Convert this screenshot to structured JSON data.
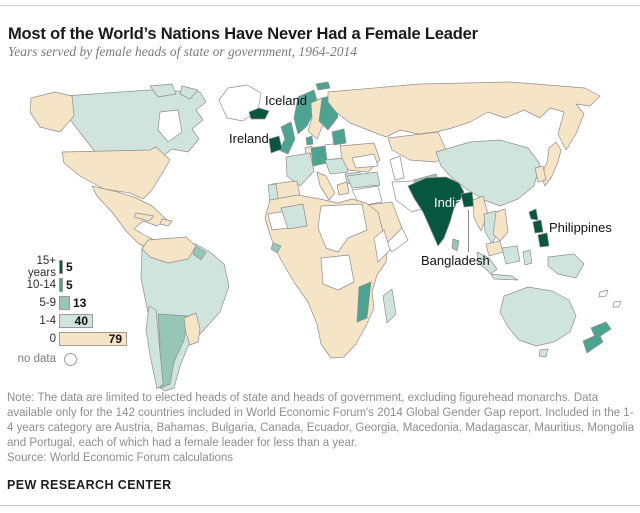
{
  "header": {
    "title": "Most of the World’s Nations Have Never Had a Female Leader",
    "subtitle": "Years served by female heads of state or government, 1964-2014"
  },
  "legend": {
    "items": [
      {
        "label": "15+ years",
        "value": 5,
        "color": "#07563f",
        "value_placement": "outside"
      },
      {
        "label": "10-14",
        "value": 5,
        "color": "#4ba492",
        "value_placement": "outside"
      },
      {
        "label": "5-9",
        "value": 13,
        "color": "#96c7b6",
        "value_placement": "outside"
      },
      {
        "label": "1-4",
        "value": 40,
        "color": "#cfe4dd",
        "value_placement": "inside"
      },
      {
        "label": "0",
        "value": 79,
        "color": "#f5e4c5",
        "value_placement": "inside"
      }
    ],
    "no_data_label": "no data"
  },
  "map": {
    "labels": [
      {
        "text": "Iceland"
      },
      {
        "text": "Ireland"
      },
      {
        "text": "India"
      },
      {
        "text": "Bangladesh"
      },
      {
        "text": "Philippines"
      }
    ]
  },
  "footer": {
    "note": "Note: The data are limited to elected heads of state and heads of government, excluding figurehead monarchs. Data available only for the 142 countries included in World Economic Forum's 2014 Global Gender Gap report. Included in the 1-4 years category are Austria, Bahamas, Bulgaria, Canada, Ecuador, Georgia, Macedonia, Madagascar, Mauritius, Mongolia and Portugal, each of which had a female leader for less than a year.",
    "source": "Source: World Economic Forum calculations",
    "branding": "PEW RESEARCH CENTER"
  },
  "colors": {
    "cat-15plus": "#07563f",
    "cat-10-14": "#4ba492",
    "cat-5-9": "#96c7b6",
    "cat-1-4": "#cfe4dd",
    "cat-0": "#f5e4c5",
    "no-data": "#ffffff",
    "map-border": "#8f8f8f",
    "rule": "#cccccc"
  },
  "chart_data": {
    "type": "choropleth_map",
    "title": "Most of the World’s Nations Have Never Had a Female Leader",
    "subtitle": "Years served by female heads of state or government, 1964-2014",
    "measure": "number of countries per category of years served by female heads of state or government",
    "period": "1964-2014",
    "categories": [
      "15+ years",
      "10-14",
      "5-9",
      "1-4",
      "0",
      "no data"
    ],
    "values": [
      5,
      5,
      13,
      40,
      79,
      null
    ],
    "category_colors": [
      "#07563f",
      "#4ba492",
      "#96c7b6",
      "#cfe4dd",
      "#f5e4c5",
      "#ffffff"
    ],
    "labeled_countries": [
      {
        "name": "Iceland",
        "category": "15+ years"
      },
      {
        "name": "Ireland",
        "category": "15+ years"
      },
      {
        "name": "India",
        "category": "15+ years"
      },
      {
        "name": "Bangladesh",
        "category": "15+ years"
      },
      {
        "name": "Philippines",
        "category": "15+ years"
      }
    ],
    "legend_position": "middle-left",
    "notes_total_countries": 142
  }
}
